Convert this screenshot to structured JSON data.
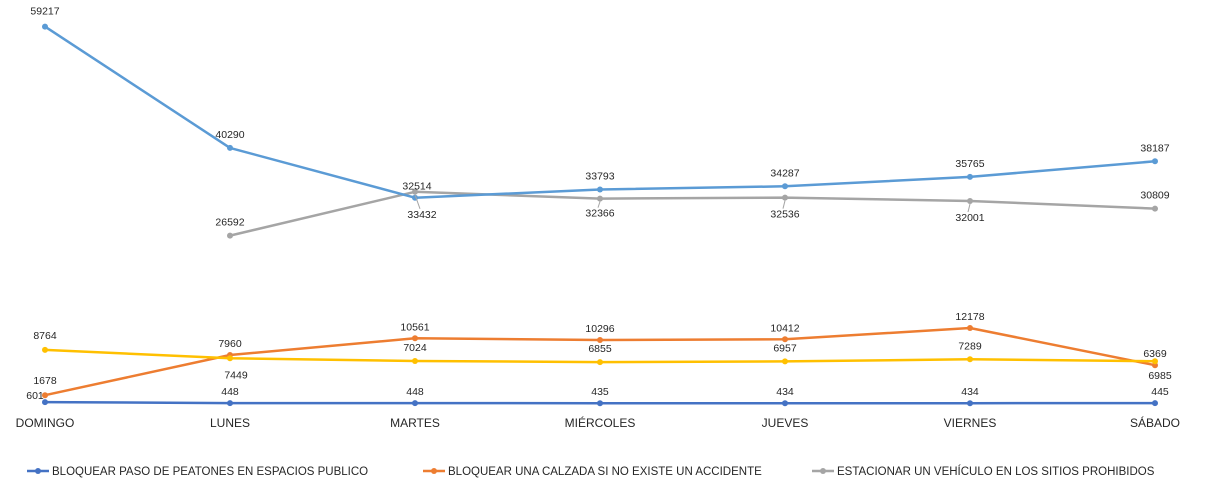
{
  "chart_data": {
    "type": "line",
    "categories": [
      "DOMINGO",
      "LUNES",
      "MARTES",
      "MIÉRCOLES",
      "JUEVES",
      "VIERNES",
      "SÁBADO"
    ],
    "series": [
      {
        "name": "BLOQUEAR PASO DE PEATONES EN ESPACIOS PUBLICO",
        "color": "#4472C4",
        "values": [
          601,
          448,
          448,
          435,
          434,
          434,
          445
        ]
      },
      {
        "name": "BLOQUEAR UNA CALZADA SI NO EXISTE UN ACCIDENTE",
        "color": "#ED7D31",
        "values": [
          1678,
          7960,
          10561,
          10296,
          10412,
          12178,
          6369
        ]
      },
      {
        "name": "ESTACIONAR UN VEHÍCULO EN LOS SITIOS PROHIBIDOS",
        "color": "#A5A5A5",
        "values": [
          null,
          26592,
          33432,
          32366,
          32536,
          32001,
          30809
        ]
      },
      {
        "name": "",
        "color": "#5B9BD5",
        "values": [
          59217,
          40290,
          32514,
          33793,
          34287,
          35765,
          38187
        ]
      },
      {
        "name": "",
        "color": "#FFC000",
        "values": [
          8764,
          7449,
          7024,
          6855,
          6957,
          7289,
          6985
        ]
      }
    ],
    "title": "",
    "xlabel": "",
    "ylabel": "",
    "ylim": [
      0,
      60000
    ],
    "grid": false,
    "legend_position": "bottom"
  }
}
